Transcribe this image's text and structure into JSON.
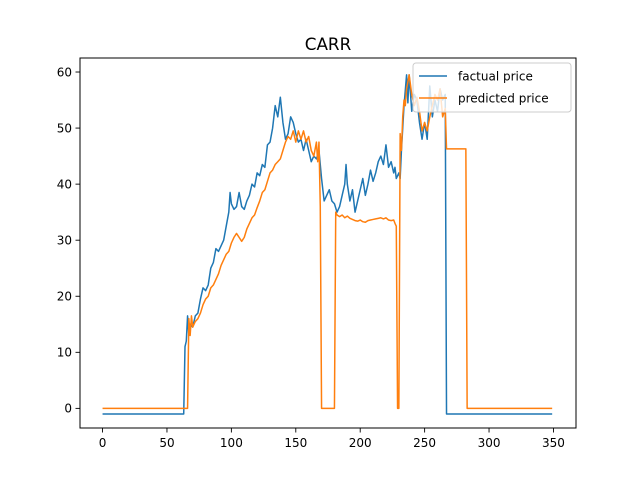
{
  "chart_data": {
    "type": "line",
    "title": "CARR",
    "xlabel": "",
    "ylabel": "",
    "xlim": [
      -17.5,
      367.5
    ],
    "ylim": [
      -3.5,
      62.5
    ],
    "xticks": [
      0,
      50,
      100,
      150,
      200,
      250,
      300,
      350
    ],
    "yticks": [
      0,
      10,
      20,
      30,
      40,
      50,
      60
    ],
    "grid": false,
    "legend_position": "top-right",
    "series": [
      {
        "name": "factual price",
        "color": "#1f77b4",
        "points": [
          [
            0,
            -1
          ],
          [
            63,
            -1
          ],
          [
            64,
            11
          ],
          [
            65,
            12
          ],
          [
            66,
            16.5
          ],
          [
            67,
            13
          ],
          [
            68,
            15
          ],
          [
            70,
            14.5
          ],
          [
            72,
            16.5
          ],
          [
            74,
            17
          ],
          [
            76,
            19.5
          ],
          [
            78,
            21.5
          ],
          [
            80,
            21
          ],
          [
            82,
            22
          ],
          [
            84,
            25
          ],
          [
            86,
            26
          ],
          [
            88,
            28.5
          ],
          [
            90,
            28
          ],
          [
            92,
            29
          ],
          [
            94,
            30
          ],
          [
            96,
            32.5
          ],
          [
            98,
            35
          ],
          [
            99,
            38.5
          ],
          [
            100,
            36.5
          ],
          [
            102,
            35.5
          ],
          [
            104,
            36
          ],
          [
            106,
            38.5
          ],
          [
            108,
            36
          ],
          [
            110,
            35.5
          ],
          [
            112,
            37
          ],
          [
            114,
            38
          ],
          [
            116,
            40
          ],
          [
            118,
            39.5
          ],
          [
            120,
            42
          ],
          [
            122,
            41.5
          ],
          [
            124,
            43.5
          ],
          [
            126,
            43
          ],
          [
            128,
            47
          ],
          [
            130,
            47.5
          ],
          [
            132,
            50
          ],
          [
            134,
            54
          ],
          [
            136,
            52
          ],
          [
            138,
            55.5
          ],
          [
            140,
            51
          ],
          [
            142,
            48
          ],
          [
            144,
            49
          ],
          [
            146,
            52
          ],
          [
            148,
            51
          ],
          [
            150,
            49
          ],
          [
            152,
            47.5
          ],
          [
            154,
            48
          ],
          [
            156,
            46
          ],
          [
            158,
            48
          ],
          [
            160,
            46
          ],
          [
            162,
            44
          ],
          [
            164,
            45
          ],
          [
            166,
            44.5
          ],
          [
            168,
            46
          ],
          [
            170,
            41
          ],
          [
            172,
            37
          ],
          [
            174,
            38
          ],
          [
            176,
            39
          ],
          [
            178,
            37
          ],
          [
            180,
            36.5
          ],
          [
            182,
            35
          ],
          [
            184,
            36
          ],
          [
            186,
            38
          ],
          [
            188,
            40
          ],
          [
            189,
            43.5
          ],
          [
            190,
            40
          ],
          [
            192,
            37
          ],
          [
            194,
            39
          ],
          [
            196,
            35
          ],
          [
            198,
            37
          ],
          [
            200,
            39
          ],
          [
            202,
            41
          ],
          [
            204,
            38
          ],
          [
            206,
            40
          ],
          [
            208,
            42.5
          ],
          [
            210,
            40.5
          ],
          [
            212,
            42
          ],
          [
            214,
            44
          ],
          [
            216,
            45
          ],
          [
            218,
            43.5
          ],
          [
            220,
            47
          ],
          [
            222,
            43
          ],
          [
            224,
            44
          ],
          [
            226,
            42
          ],
          [
            227,
            43
          ],
          [
            228,
            41
          ],
          [
            230,
            42
          ],
          [
            231,
            41
          ],
          [
            232,
            46
          ],
          [
            234,
            54
          ],
          [
            236,
            59.5
          ],
          [
            237,
            54.5
          ],
          [
            238,
            59.5
          ],
          [
            240,
            53
          ],
          [
            242,
            56
          ],
          [
            244,
            55
          ],
          [
            246,
            51
          ],
          [
            248,
            48
          ],
          [
            250,
            51
          ],
          [
            252,
            48
          ],
          [
            254,
            57.5
          ],
          [
            256,
            52
          ],
          [
            258,
            55
          ],
          [
            260,
            53
          ],
          [
            262,
            57
          ],
          [
            264,
            55
          ],
          [
            266,
            56
          ],
          [
            267,
            -1
          ],
          [
            349,
            -1
          ]
        ]
      },
      {
        "name": "predicted price",
        "color": "#ff7f0e",
        "points": [
          [
            0,
            0
          ],
          [
            66,
            0
          ],
          [
            67,
            16
          ],
          [
            68,
            13
          ],
          [
            69,
            16.5
          ],
          [
            70,
            14.5
          ],
          [
            72,
            15.5
          ],
          [
            74,
            16
          ],
          [
            76,
            17
          ],
          [
            78,
            18.5
          ],
          [
            80,
            19.5
          ],
          [
            82,
            20
          ],
          [
            84,
            21.5
          ],
          [
            86,
            22
          ],
          [
            88,
            23
          ],
          [
            90,
            24
          ],
          [
            92,
            25.5
          ],
          [
            94,
            26.5
          ],
          [
            96,
            27.5
          ],
          [
            98,
            28
          ],
          [
            100,
            29.5
          ],
          [
            102,
            30.5
          ],
          [
            104,
            31.2
          ],
          [
            106,
            30.5
          ],
          [
            108,
            29.8
          ],
          [
            110,
            30.5
          ],
          [
            112,
            32
          ],
          [
            114,
            33
          ],
          [
            116,
            34
          ],
          [
            118,
            34.5
          ],
          [
            120,
            35.8
          ],
          [
            122,
            37
          ],
          [
            124,
            38.5
          ],
          [
            126,
            39
          ],
          [
            128,
            40.5
          ],
          [
            130,
            42
          ],
          [
            132,
            42.5
          ],
          [
            134,
            43.5
          ],
          [
            136,
            44
          ],
          [
            138,
            44.5
          ],
          [
            140,
            46
          ],
          [
            142,
            47.5
          ],
          [
            144,
            48.5
          ],
          [
            146,
            48
          ],
          [
            148,
            49.5
          ],
          [
            150,
            47.5
          ],
          [
            152,
            49.5
          ],
          [
            154,
            48
          ],
          [
            156,
            49.5
          ],
          [
            158,
            47.5
          ],
          [
            160,
            48.5
          ],
          [
            162,
            46
          ],
          [
            164,
            45
          ],
          [
            166,
            47.5
          ],
          [
            167,
            44
          ],
          [
            168,
            47.5
          ],
          [
            169,
            36
          ],
          [
            170,
            0
          ],
          [
            180,
            0
          ],
          [
            181,
            35
          ],
          [
            182,
            34.5
          ],
          [
            184,
            34.2
          ],
          [
            186,
            34.5
          ],
          [
            188,
            34
          ],
          [
            190,
            34.3
          ],
          [
            192,
            33.9
          ],
          [
            194,
            33.7
          ],
          [
            196,
            33.5
          ],
          [
            198,
            33.4
          ],
          [
            200,
            33.6
          ],
          [
            202,
            33.3
          ],
          [
            204,
            33.2
          ],
          [
            206,
            33.5
          ],
          [
            208,
            33.6
          ],
          [
            210,
            33.7
          ],
          [
            212,
            33.8
          ],
          [
            214,
            33.9
          ],
          [
            216,
            34
          ],
          [
            218,
            33.8
          ],
          [
            220,
            34
          ],
          [
            222,
            33.6
          ],
          [
            224,
            33.5
          ],
          [
            226,
            33.6
          ],
          [
            227,
            33
          ],
          [
            228,
            32.5
          ],
          [
            229,
            0
          ],
          [
            230,
            0
          ],
          [
            231,
            49
          ],
          [
            232,
            46
          ],
          [
            233,
            52
          ],
          [
            234,
            55
          ],
          [
            235,
            54
          ],
          [
            236,
            57
          ],
          [
            238,
            59.5
          ],
          [
            240,
            56
          ],
          [
            242,
            54
          ],
          [
            244,
            55.5
          ],
          [
            246,
            53
          ],
          [
            248,
            49.5
          ],
          [
            250,
            51
          ],
          [
            252,
            49.5
          ],
          [
            254,
            52
          ],
          [
            256,
            54
          ],
          [
            258,
            56
          ],
          [
            260,
            55
          ],
          [
            262,
            57
          ],
          [
            264,
            52
          ],
          [
            266,
            53.5
          ],
          [
            267,
            46.3
          ],
          [
            282,
            46.3
          ],
          [
            283,
            0
          ],
          [
            349,
            0
          ]
        ]
      }
    ]
  }
}
